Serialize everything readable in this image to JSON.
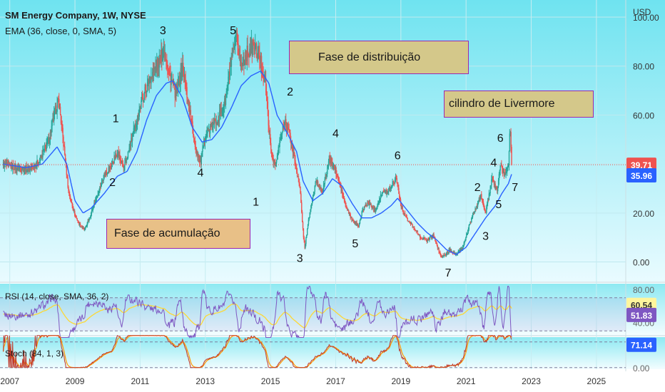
{
  "header": {
    "symbol_title": "SM Energy Company, 1W, NYSE",
    "ema_label": "EMA (36, close, 0, SMA, 5)",
    "currency": "USD"
  },
  "colors": {
    "bg_top": "#6fe3f0",
    "bg_bottom": "#ffffff",
    "up": "#26a69a",
    "down": "#ef5350",
    "ema": "#2962ff",
    "rsi": "#7e57c2",
    "rsi_ma": "#fdd835",
    "stoch_k": "#c0392b",
    "stoch_d": "#ff9800",
    "note_fill": "#d4c88a",
    "note_border": "#9c27b0"
  },
  "annotations": {
    "distribution": "Fase de distribuição",
    "livermore": "cilindro de Livermore",
    "accumulation": "Fase de acumulação",
    "waves": [
      {
        "text": "1",
        "year": 2010.25,
        "price": 57
      },
      {
        "text": "2",
        "year": 2010.15,
        "price": 31
      },
      {
        "text": "3",
        "year": 2011.7,
        "price": 93
      },
      {
        "text": "4",
        "year": 2012.85,
        "price": 35
      },
      {
        "text": "5",
        "year": 2013.85,
        "price": 93
      },
      {
        "text": "1",
        "year": 2014.55,
        "price": 23
      },
      {
        "text": "2",
        "year": 2015.6,
        "price": 68
      },
      {
        "text": "3",
        "year": 2015.9,
        "price": 0
      },
      {
        "text": "4",
        "year": 2017.0,
        "price": 51
      },
      {
        "text": "5",
        "year": 2017.6,
        "price": 6
      },
      {
        "text": "6",
        "year": 2018.9,
        "price": 42
      },
      {
        "text": "7",
        "year": 2020.45,
        "price": -6
      },
      {
        "text": "2",
        "year": 2021.35,
        "price": 29
      },
      {
        "text": "3",
        "year": 2021.6,
        "price": 9
      },
      {
        "text": "4",
        "year": 2021.85,
        "price": 39
      },
      {
        "text": "5",
        "year": 2022.0,
        "price": 22
      },
      {
        "text": "6",
        "year": 2022.05,
        "price": 49
      },
      {
        "text": "7",
        "year": 2022.5,
        "price": 29
      }
    ]
  },
  "price_labels": {
    "last": "39.71",
    "ema": "35.96",
    "rsi": "60.54",
    "rsi_ma": "51.83",
    "stoch": "71.14"
  },
  "panels": {
    "rsi_label": "RSI (14, close, SMA, 36, 2)",
    "stoch_label": "Stoch (84, 1, 3)",
    "rsi_ticks": [
      "80.00",
      "40.00"
    ],
    "stoch_ticks": [
      "80.00",
      "0.00"
    ]
  },
  "chart_data": {
    "type": "candlestick",
    "title": "SM Energy Company, 1W, NYSE",
    "x_axis": {
      "ticks": [
        "2007",
        "2009",
        "2011",
        "2013",
        "2015",
        "2017",
        "2019",
        "2021",
        "2023",
        "2025"
      ],
      "range": [
        2006.7,
        2025.9
      ]
    },
    "y_axis": {
      "unit": "USD",
      "ticks": [
        "100.00",
        "80.00",
        "60.00",
        "40.00",
        "20.00",
        "0.00"
      ],
      "range": [
        -8,
        107
      ]
    },
    "price_path": [
      [
        2006.8,
        40
      ],
      [
        2007.2,
        38.5
      ],
      [
        2007.6,
        38
      ],
      [
        2007.9,
        41
      ],
      [
        2008.2,
        50
      ],
      [
        2008.4,
        62
      ],
      [
        2008.5,
        66
      ],
      [
        2008.7,
        42
      ],
      [
        2008.8,
        29
      ],
      [
        2009.0,
        19
      ],
      [
        2009.15,
        15
      ],
      [
        2009.3,
        13
      ],
      [
        2009.5,
        20
      ],
      [
        2009.7,
        28
      ],
      [
        2009.9,
        36
      ],
      [
        2010.1,
        39
      ],
      [
        2010.3,
        45
      ],
      [
        2010.5,
        38
      ],
      [
        2010.7,
        48
      ],
      [
        2010.9,
        58
      ],
      [
        2011.1,
        68
      ],
      [
        2011.3,
        75
      ],
      [
        2011.5,
        80
      ],
      [
        2011.75,
        87
      ],
      [
        2011.9,
        76
      ],
      [
        2012.1,
        68
      ],
      [
        2012.3,
        80
      ],
      [
        2012.5,
        63
      ],
      [
        2012.7,
        47
      ],
      [
        2012.85,
        40
      ],
      [
        2013.0,
        52
      ],
      [
        2013.2,
        55
      ],
      [
        2013.4,
        59
      ],
      [
        2013.6,
        65
      ],
      [
        2013.75,
        78
      ],
      [
        2013.95,
        92
      ],
      [
        2014.1,
        80
      ],
      [
        2014.3,
        86
      ],
      [
        2014.5,
        88
      ],
      [
        2014.7,
        82
      ],
      [
        2014.85,
        72
      ],
      [
        2015.0,
        46
      ],
      [
        2015.15,
        39
      ],
      [
        2015.3,
        50
      ],
      [
        2015.45,
        58
      ],
      [
        2015.6,
        51
      ],
      [
        2015.75,
        41
      ],
      [
        2015.9,
        30
      ],
      [
        2016.0,
        12
      ],
      [
        2016.05,
        6
      ],
      [
        2016.2,
        20
      ],
      [
        2016.4,
        33
      ],
      [
        2016.6,
        29
      ],
      [
        2016.8,
        42
      ],
      [
        2016.95,
        39
      ],
      [
        2017.1,
        33
      ],
      [
        2017.3,
        23
      ],
      [
        2017.5,
        17
      ],
      [
        2017.7,
        15
      ],
      [
        2017.85,
        22
      ],
      [
        2018.0,
        24
      ],
      [
        2018.2,
        21
      ],
      [
        2018.4,
        28
      ],
      [
        2018.6,
        29
      ],
      [
        2018.75,
        32
      ],
      [
        2018.85,
        35
      ],
      [
        2019.0,
        23
      ],
      [
        2019.2,
        17
      ],
      [
        2019.4,
        14
      ],
      [
        2019.6,
        10
      ],
      [
        2019.8,
        9
      ],
      [
        2020.0,
        11
      ],
      [
        2020.2,
        3
      ],
      [
        2020.3,
        2
      ],
      [
        2020.5,
        5
      ],
      [
        2020.7,
        3
      ],
      [
        2020.9,
        6
      ],
      [
        2021.1,
        15
      ],
      [
        2021.3,
        22
      ],
      [
        2021.45,
        27
      ],
      [
        2021.6,
        20
      ],
      [
        2021.8,
        34
      ],
      [
        2021.95,
        29
      ],
      [
        2022.05,
        40
      ],
      [
        2022.2,
        35
      ],
      [
        2022.3,
        41
      ],
      [
        2022.35,
        55
      ],
      [
        2022.4,
        39.71
      ]
    ],
    "ema_path": [
      [
        2006.8,
        40
      ],
      [
        2007.5,
        38.5
      ],
      [
        2008.0,
        40
      ],
      [
        2008.45,
        47
      ],
      [
        2008.75,
        40
      ],
      [
        2009.0,
        25
      ],
      [
        2009.25,
        20
      ],
      [
        2009.5,
        22
      ],
      [
        2009.9,
        28
      ],
      [
        2010.3,
        35
      ],
      [
        2010.6,
        37
      ],
      [
        2010.9,
        45
      ],
      [
        2011.2,
        58
      ],
      [
        2011.5,
        68
      ],
      [
        2011.8,
        73
      ],
      [
        2012.0,
        74
      ],
      [
        2012.3,
        67
      ],
      [
        2012.6,
        55
      ],
      [
        2012.9,
        49
      ],
      [
        2013.2,
        50
      ],
      [
        2013.5,
        55
      ],
      [
        2013.8,
        63
      ],
      [
        2014.1,
        72
      ],
      [
        2014.4,
        76
      ],
      [
        2014.7,
        78
      ],
      [
        2014.95,
        73
      ],
      [
        2015.2,
        60
      ],
      [
        2015.5,
        53
      ],
      [
        2015.8,
        45
      ],
      [
        2016.0,
        33
      ],
      [
        2016.3,
        25
      ],
      [
        2016.6,
        28
      ],
      [
        2016.9,
        34
      ],
      [
        2017.2,
        31
      ],
      [
        2017.5,
        24
      ],
      [
        2017.8,
        18
      ],
      [
        2018.1,
        18
      ],
      [
        2018.4,
        20
      ],
      [
        2018.7,
        23
      ],
      [
        2018.9,
        26
      ],
      [
        2019.2,
        21
      ],
      [
        2019.5,
        16
      ],
      [
        2019.8,
        12
      ],
      [
        2020.1,
        9
      ],
      [
        2020.4,
        5
      ],
      [
        2020.7,
        3
      ],
      [
        2021.0,
        6
      ],
      [
        2021.3,
        12
      ],
      [
        2021.6,
        18
      ],
      [
        2021.9,
        23
      ],
      [
        2022.1,
        28
      ],
      [
        2022.3,
        32
      ],
      [
        2022.4,
        35.96
      ]
    ],
    "rsi": {
      "ticks": [
        80,
        40
      ],
      "levels": [
        70,
        30
      ],
      "last": 60.54,
      "ma_last": 51.83
    },
    "stochastic": {
      "ticks": [
        80,
        0
      ],
      "last": 71.14
    }
  }
}
